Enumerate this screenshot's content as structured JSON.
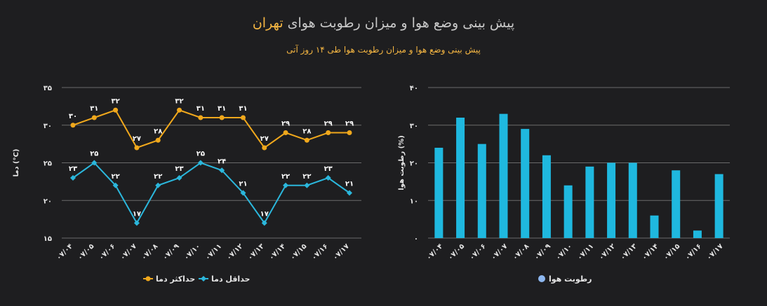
{
  "header": {
    "title_prefix": "پیش بینی وضع هوا و میزان رطوبت هوای ",
    "title_city": "تهران",
    "subtitle": "پیش بینی وضع هوا و میزان رطوبت هوا طی ۱۴ روز آتی"
  },
  "colors": {
    "max_temp": "#f0a81c",
    "min_temp": "#2bb7dc",
    "humidity": "#1fb8df",
    "humidity_legend": "#8db7f0",
    "grid": "#6b6b6b"
  },
  "chart_data": [
    {
      "type": "line",
      "categories": [
        "۰۷/۰۴",
        "۰۷/۰۵",
        "۰۷/۰۶",
        "۰۷/۰۷",
        "۰۷/۰۸",
        "۰۷/۰۹",
        "۰۷/۱۰",
        "۰۷/۱۱",
        "۰۷/۱۲",
        "۰۷/۱۳",
        "۰۷/۱۴",
        "۰۷/۱۵",
        "۰۷/۱۶",
        "۰۷/۱۷"
      ],
      "series": [
        {
          "name": "حداکثر دما",
          "values": [
            30,
            31,
            32,
            27,
            28,
            32,
            31,
            31,
            31,
            27,
            29,
            28,
            29,
            29
          ]
        },
        {
          "name": "حداقل دما",
          "values": [
            23,
            25,
            22,
            17,
            22,
            23,
            25,
            24,
            21,
            17,
            22,
            22,
            23,
            21
          ]
        }
      ],
      "ylabel": "دما (°C)",
      "ylim": [
        15,
        35
      ],
      "yticks": [
        15,
        20,
        25,
        30,
        35
      ],
      "ytick_labels": [
        "۱۵",
        "۲۰",
        "۲۵",
        "۳۰",
        "۳۵"
      ],
      "grid": true,
      "legend": "bottom"
    },
    {
      "type": "bar",
      "categories": [
        "۰۷/۰۴",
        "۰۷/۰۵",
        "۰۷/۰۶",
        "۰۷/۰۷",
        "۰۷/۰۸",
        "۰۷/۰۹",
        "۰۷/۱۰",
        "۰۷/۱۱",
        "۰۷/۱۲",
        "۰۷/۱۳",
        "۰۷/۱۴",
        "۰۷/۱۵",
        "۰۷/۱۶",
        "۰۷/۱۷"
      ],
      "series": [
        {
          "name": "رطوبت هوا",
          "values": [
            24,
            32,
            25,
            33,
            29,
            22,
            14,
            19,
            20,
            20,
            6,
            18,
            2,
            17
          ]
        }
      ],
      "ylabel": "رطوبت هوا (%)",
      "ylim": [
        0,
        40
      ],
      "yticks": [
        0,
        10,
        20,
        30,
        40
      ],
      "ytick_labels": [
        "۰",
        "۱۰",
        "۲۰",
        "۳۰",
        "۴۰"
      ],
      "grid": true,
      "legend": "bottom"
    }
  ]
}
